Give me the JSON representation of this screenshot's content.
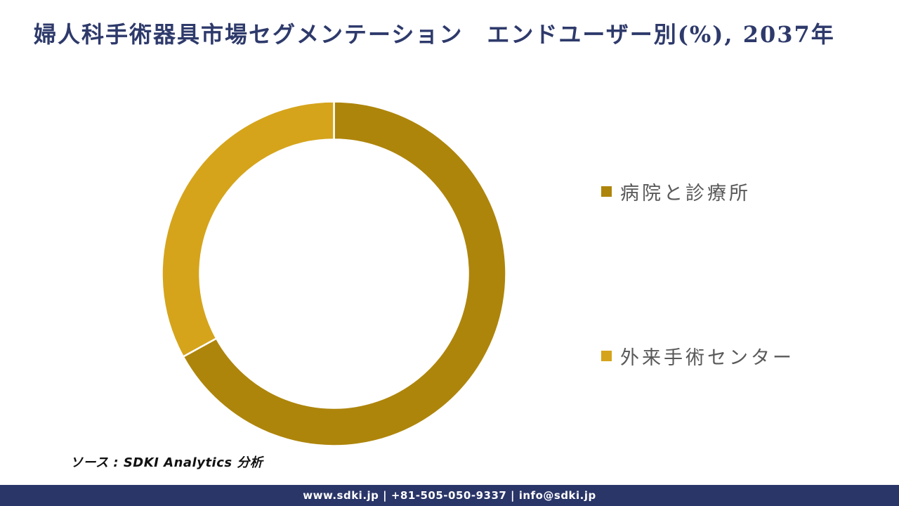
{
  "title": "婦人科手術器具市場セグメンテーション　エンドユーザー別(%), 2037年",
  "chart_data": {
    "type": "pie",
    "subtype": "donut",
    "title": "婦人科手術器具市場セグメンテーション　エンドユーザー別(%), 2037年",
    "labels": [
      "病院と診療所",
      "外来手術センター"
    ],
    "values": [
      67,
      33
    ],
    "colors": [
      "#AE850B",
      "#D5A41B"
    ],
    "start_angle": "top",
    "direction": "clockwise",
    "hole_ratio": 0.78,
    "legend_position": "right",
    "data_labels_shown": false
  },
  "legend": {
    "items": [
      {
        "label": "病院と診療所",
        "color": "#AE850B"
      },
      {
        "label": "外来手術センター",
        "color": "#D5A41B"
      }
    ]
  },
  "source_note": "ソース : SDKI Analytics 分析",
  "footer": {
    "text": "www.sdki.jp | +81-505-050-9337 | info@sdki.jp",
    "background": "#2A3568"
  },
  "colors": {
    "title": "#2E3A6B",
    "legend_text": "#595959",
    "footer_text": "#FFFFFF",
    "segment_divider": "#FFFFFF",
    "background": "#FFFFFF"
  }
}
